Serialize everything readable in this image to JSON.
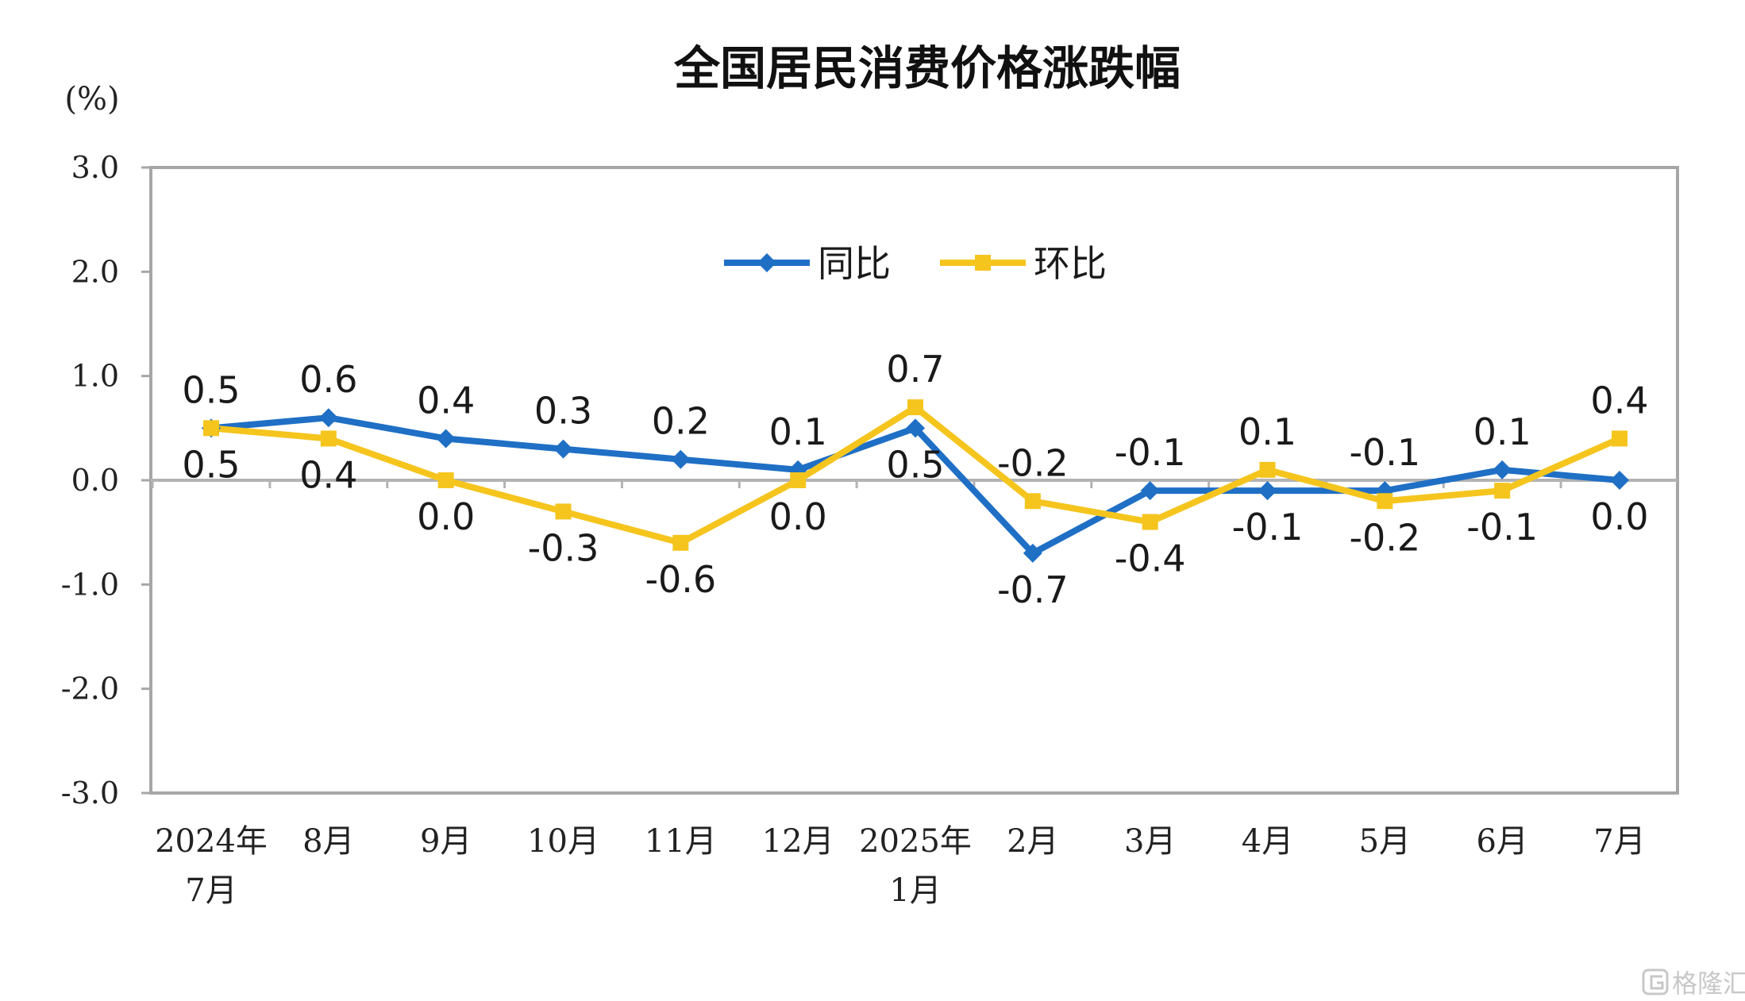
{
  "chart_data": {
    "type": "line",
    "title": "全国居民消费价格涨跌幅",
    "unit_label": "(%)",
    "categories": [
      [
        "2024年",
        "7月"
      ],
      [
        "8月"
      ],
      [
        "9月"
      ],
      [
        "10月"
      ],
      [
        "11月"
      ],
      [
        "12月"
      ],
      [
        "2025年",
        "1月"
      ],
      [
        "2月"
      ],
      [
        "3月"
      ],
      [
        "4月"
      ],
      [
        "5月"
      ],
      [
        "6月"
      ],
      [
        "7月"
      ]
    ],
    "ylim": [
      -3.0,
      3.0
    ],
    "yticks": [
      3.0,
      2.0,
      1.0,
      0.0,
      -1.0,
      -2.0,
      -3.0
    ],
    "ytick_labels": [
      "3.0",
      "2.0",
      "1.0",
      "0.0",
      "-1.0",
      "-2.0",
      "-3.0"
    ],
    "grid": false,
    "legend_position": "top-center",
    "series": [
      {
        "name": "同比",
        "color": "#1f6fc5",
        "marker": "diamond",
        "values": [
          0.5,
          0.6,
          0.4,
          0.3,
          0.2,
          0.1,
          0.5,
          -0.7,
          -0.1,
          -0.1,
          -0.1,
          0.1,
          0.0
        ],
        "labels": [
          "0.5",
          "0.6",
          "0.4",
          "0.3",
          "0.2",
          "0.1",
          "0.5",
          "-0.7",
          "-0.1",
          "-0.1",
          "-0.1",
          "0.1",
          "0.0"
        ],
        "label_side": [
          "above",
          "above",
          "above",
          "above",
          "above",
          "above",
          "below",
          "below",
          "above",
          "below",
          "above",
          "above",
          "below"
        ]
      },
      {
        "name": "环比",
        "color": "#f5c51e",
        "marker": "square",
        "values": [
          0.5,
          0.4,
          0.0,
          -0.3,
          -0.6,
          0.0,
          0.7,
          -0.2,
          -0.4,
          0.1,
          -0.2,
          -0.1,
          0.4
        ],
        "labels": [
          "0.5",
          "0.4",
          "0.0",
          "-0.3",
          "-0.6",
          "0.0",
          "0.7",
          "-0.2",
          "-0.4",
          "0.1",
          "-0.2",
          "-0.1",
          "0.4"
        ],
        "label_side": [
          "below",
          "below",
          "below",
          "below",
          "below",
          "below",
          "above",
          "above",
          "below",
          "above",
          "below",
          "below",
          "above"
        ]
      }
    ]
  },
  "watermark": {
    "text": "格隆汇",
    "color": "#c8c8c8"
  }
}
